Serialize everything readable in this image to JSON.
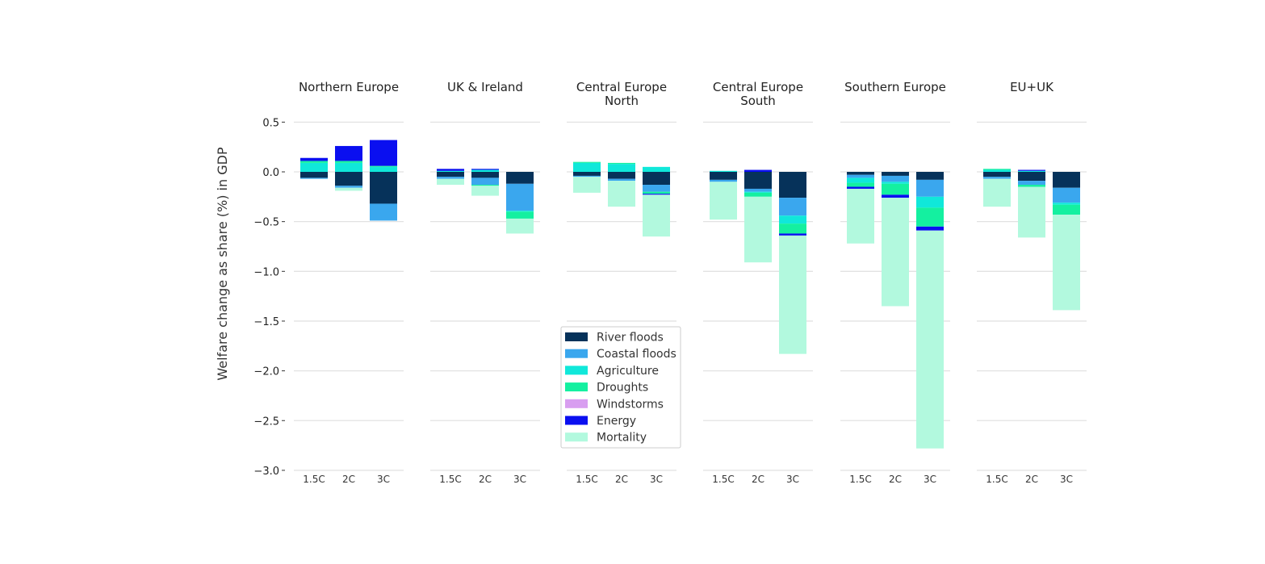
{
  "chart_data": {
    "type": "bar",
    "stacked": true,
    "ylabel": "Welfare change as share (%) in GDP",
    "ylim": [
      -3.0,
      0.5
    ],
    "yticks": [
      0.5,
      0.0,
      -0.5,
      -1.0,
      -1.5,
      -2.0,
      -2.5,
      -3.0
    ],
    "ytick_labels": [
      "0.5",
      "0.0",
      "−0.5",
      "−1.0",
      "−1.5",
      "−2.0",
      "−2.5",
      "−3.0"
    ],
    "categories": [
      "1.5C",
      "2C",
      "3C"
    ],
    "grid": true,
    "legend": {
      "placement": "lower-center",
      "items": [
        {
          "name": "River floods",
          "color": "#06325a"
        },
        {
          "name": "Coastal floods",
          "color": "#3aa7ee"
        },
        {
          "name": "Agriculture",
          "color": "#10e8da"
        },
        {
          "name": "Droughts",
          "color": "#14f0a0"
        },
        {
          "name": "Windstorms",
          "color": "#d89ef0"
        },
        {
          "name": "Energy",
          "color": "#0a0ff0"
        },
        {
          "name": "Mortality",
          "color": "#b2f9de"
        }
      ]
    },
    "panels": [
      {
        "title": [
          "Northern Europe"
        ],
        "bars": [
          {
            "River floods": -0.06,
            "Coastal floods": -0.01,
            "Agriculture": 0.09,
            "Droughts": 0.02,
            "Windstorms": 0,
            "Energy": 0.03,
            "Mortality": 0
          },
          {
            "River floods": -0.14,
            "Coastal floods": -0.02,
            "Agriculture": 0.09,
            "Droughts": 0.02,
            "Windstorms": 0,
            "Energy": 0.15,
            "Mortality": -0.03
          },
          {
            "River floods": -0.32,
            "Coastal floods": -0.17,
            "Agriculture": 0.05,
            "Droughts": 0.01,
            "Windstorms": 0,
            "Energy": 0.26,
            "Mortality": 0
          }
        ]
      },
      {
        "title": [
          "UK & Ireland"
        ],
        "bars": [
          {
            "River floods": -0.05,
            "Coastal floods": -0.02,
            "Agriculture": 0.01,
            "Droughts": 0,
            "Windstorms": 0,
            "Energy": 0.02,
            "Mortality": -0.06
          },
          {
            "River floods": -0.06,
            "Coastal floods": -0.07,
            "Agriculture": 0.02,
            "Droughts": -0.01,
            "Windstorms": 0,
            "Energy": 0.01,
            "Mortality": -0.1
          },
          {
            "River floods": -0.12,
            "Coastal floods": -0.27,
            "Agriculture": -0.01,
            "Droughts": -0.07,
            "Windstorms": 0,
            "Energy": 0,
            "Mortality": -0.15
          }
        ]
      },
      {
        "title": [
          "Central Europe",
          "North"
        ],
        "bars": [
          {
            "River floods": -0.04,
            "Coastal floods": -0.01,
            "Agriculture": 0.09,
            "Droughts": 0.01,
            "Windstorms": 0,
            "Energy": 0,
            "Mortality": -0.16
          },
          {
            "River floods": -0.07,
            "Coastal floods": -0.02,
            "Agriculture": 0.08,
            "Droughts": 0.01,
            "Windstorms": 0,
            "Energy": 0,
            "Mortality": -0.26
          },
          {
            "River floods": -0.13,
            "Coastal floods": -0.07,
            "Agriculture": 0.05,
            "Droughts": -0.02,
            "Windstorms": 0,
            "Energy": -0.01,
            "Mortality": -0.42
          }
        ]
      },
      {
        "title": [
          "Central Europe",
          "South"
        ],
        "bars": [
          {
            "River floods": -0.08,
            "Coastal floods": -0.02,
            "Agriculture": 0.01,
            "Droughts": 0,
            "Windstorms": 0,
            "Energy": 0,
            "Mortality": -0.38
          },
          {
            "River floods": -0.17,
            "Coastal floods": -0.03,
            "Agriculture": -0.01,
            "Droughts": -0.04,
            "Windstorms": 0,
            "Energy": 0.02,
            "Mortality": -0.66
          },
          {
            "River floods": -0.26,
            "Coastal floods": -0.18,
            "Agriculture": -0.08,
            "Droughts": -0.1,
            "Windstorms": 0,
            "Energy": -0.02,
            "Mortality": -1.19
          }
        ]
      },
      {
        "title": [
          "Southern Europe"
        ],
        "bars": [
          {
            "River floods": -0.03,
            "Coastal floods": -0.03,
            "Agriculture": -0.05,
            "Droughts": -0.04,
            "Windstorms": 0,
            "Energy": -0.02,
            "Mortality": -0.55
          },
          {
            "River floods": -0.04,
            "Coastal floods": -0.06,
            "Agriculture": -0.02,
            "Droughts": -0.11,
            "Windstorms": 0,
            "Energy": -0.03,
            "Mortality": -1.09
          },
          {
            "River floods": -0.08,
            "Coastal floods": -0.17,
            "Agriculture": -0.11,
            "Droughts": -0.19,
            "Windstorms": 0,
            "Energy": -0.04,
            "Mortality": -2.19
          }
        ]
      },
      {
        "title": [
          "EU+UK"
        ],
        "bars": [
          {
            "River floods": -0.05,
            "Coastal floods": -0.02,
            "Agriculture": 0.02,
            "Droughts": 0.01,
            "Windstorms": 0,
            "Energy": 0,
            "Mortality": -0.28
          },
          {
            "River floods": -0.09,
            "Coastal floods": -0.04,
            "Agriculture": 0.01,
            "Droughts": -0.02,
            "Windstorms": 0,
            "Energy": 0.01,
            "Mortality": -0.51
          },
          {
            "River floods": -0.16,
            "Coastal floods": -0.15,
            "Agriculture": -0.02,
            "Droughts": -0.1,
            "Windstorms": 0,
            "Energy": 0,
            "Mortality": -0.96
          }
        ]
      }
    ]
  }
}
